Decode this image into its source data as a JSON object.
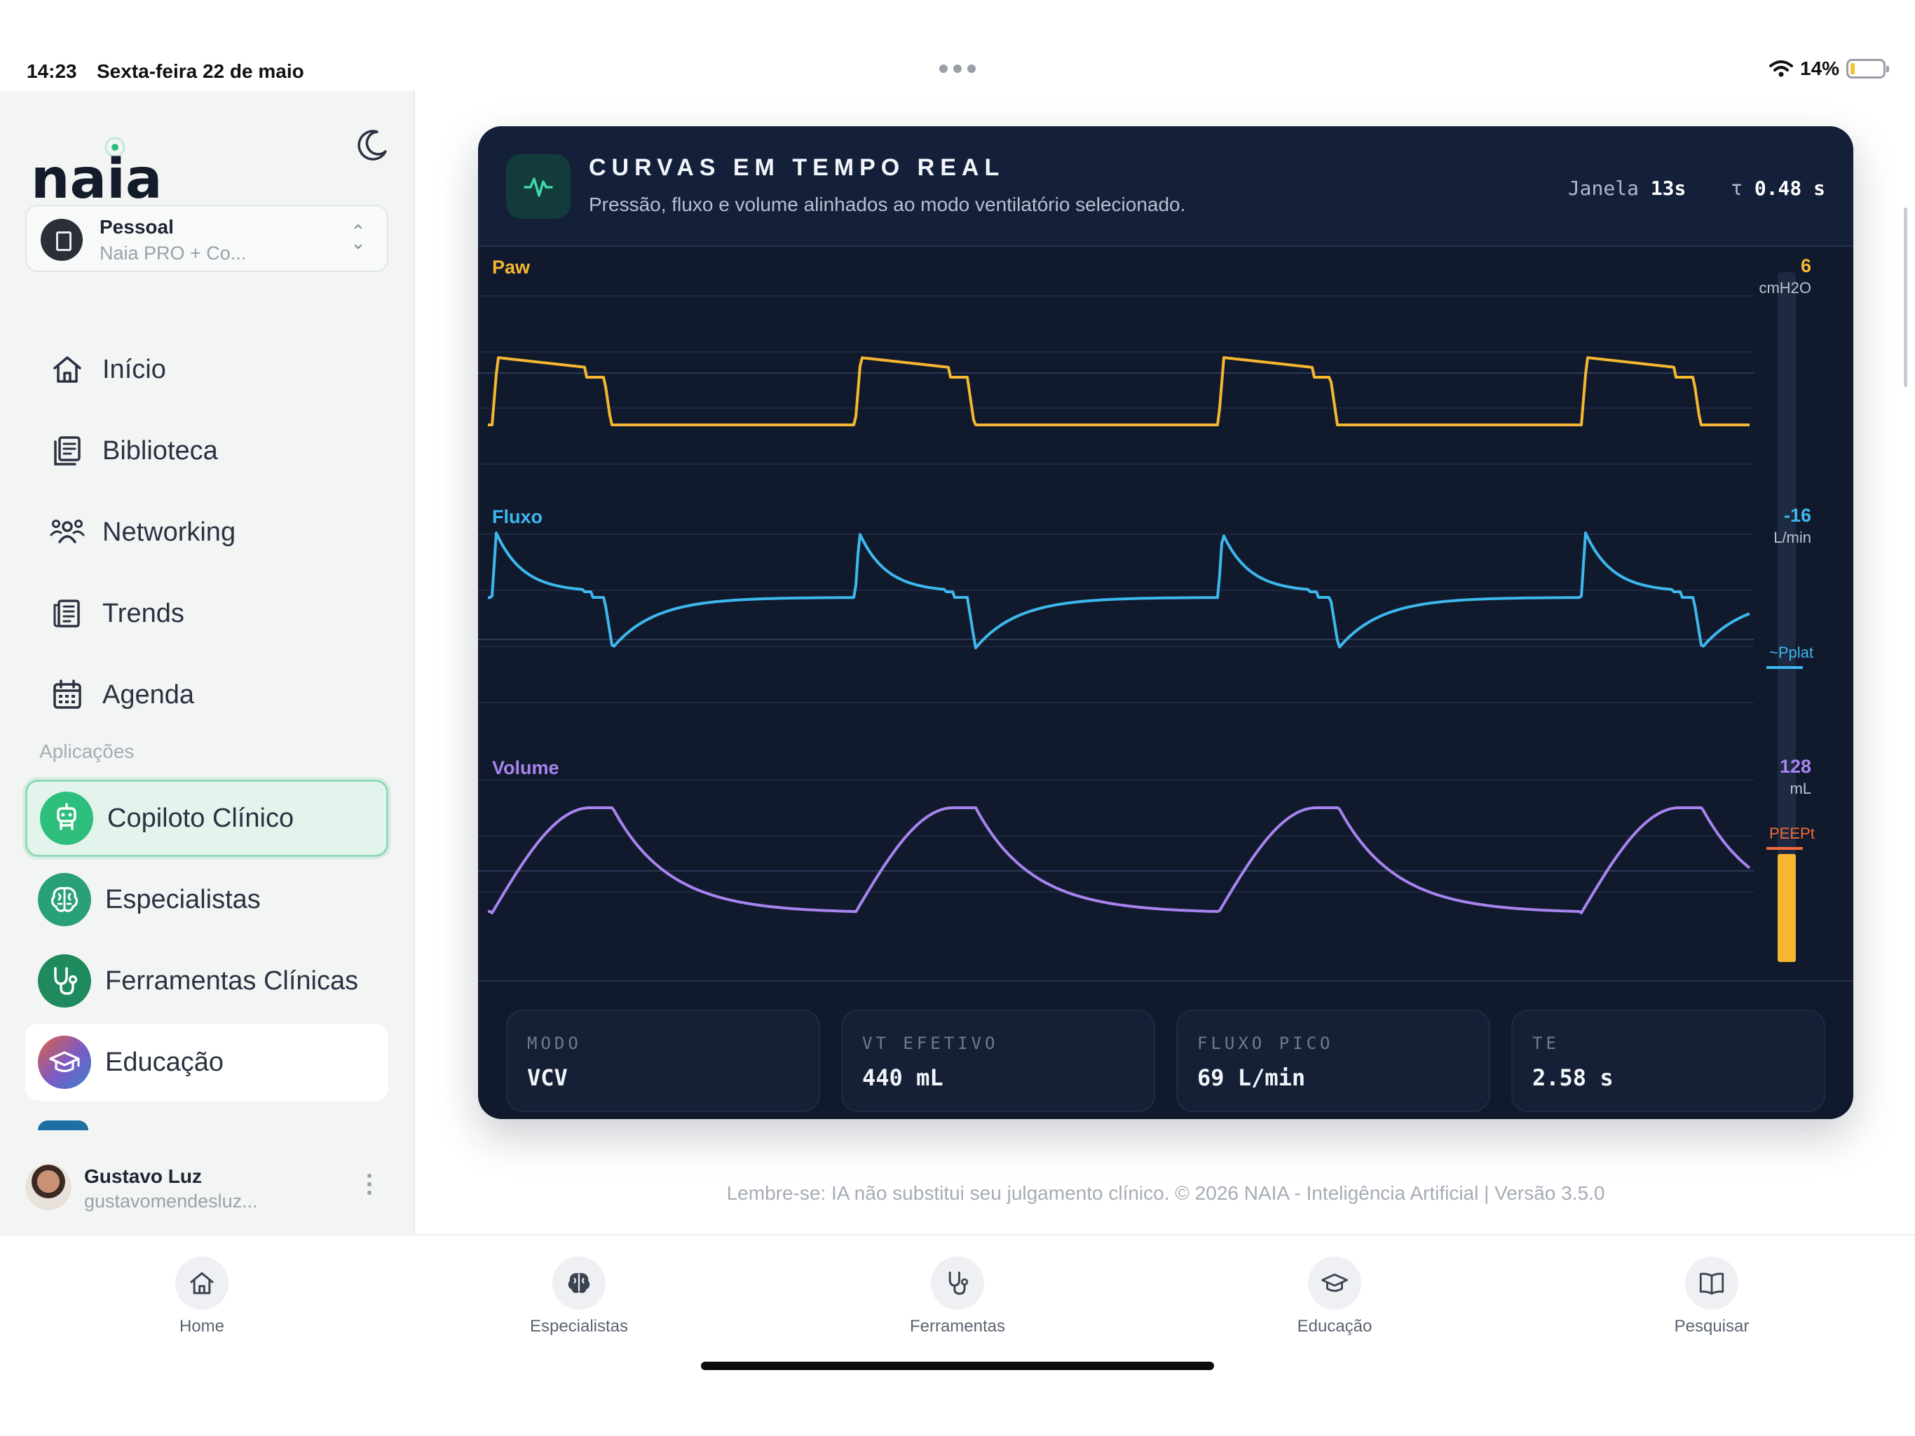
{
  "status_bar": {
    "time": "14:23",
    "date": "Sexta-feira 22 de maio",
    "battery": "14%",
    "battery_level": 0.14
  },
  "sidebar": {
    "logo_text": "naia",
    "workspace": {
      "name": "Pessoal",
      "subtitle": "Naia PRO + Co..."
    },
    "nav": [
      {
        "label": "Início",
        "icon": "home-icon"
      },
      {
        "label": "Biblioteca",
        "icon": "library-icon"
      },
      {
        "label": "Networking",
        "icon": "people-icon"
      },
      {
        "label": "Trends",
        "icon": "newspaper-icon"
      },
      {
        "label": "Agenda",
        "icon": "calendar-icon"
      }
    ],
    "apps_heading": "Aplicações",
    "apps": [
      {
        "label": "Copiloto Clínico",
        "icon": "robot-icon",
        "color": "#2fbf7d",
        "active": true
      },
      {
        "label": "Especialistas",
        "icon": "brain-icon",
        "color": "#2aa07a"
      },
      {
        "label": "Ferramentas Clínicas",
        "icon": "stethoscope-icon",
        "color": "#1e8a5e"
      },
      {
        "label": "Educação",
        "icon": "graduation-cap-icon",
        "color": "#7a5bc9"
      }
    ],
    "user": {
      "name": "Gustavo Luz",
      "email": "gustavomendesluz..."
    }
  },
  "panel": {
    "title": "CURVAS EM TEMPO REAL",
    "subtitle": "Pressão, fluxo e volume alinhados ao modo ventilatório selecionado.",
    "window_label": "Janela",
    "window_value": "13s",
    "tau_label": "τ",
    "tau_value": "0.48 s",
    "icon": "waveform-icon"
  },
  "channels": {
    "paw": {
      "label": "Paw",
      "value": "6",
      "unit": "cmH2O",
      "color": "#f5b731"
    },
    "flow": {
      "label": "Fluxo",
      "value": "-16",
      "unit": "L/min",
      "color": "#3cb8ee"
    },
    "volume": {
      "label": "Volume",
      "value": "128",
      "unit": "mL",
      "color": "#a784f0"
    }
  },
  "markers": {
    "pplat": {
      "label": "~Pplat",
      "color": "#3cb8ee"
    },
    "peep": {
      "label": "PEEPt",
      "color": "#f26b3a"
    },
    "gauge_color": "#f5b731"
  },
  "stats": [
    {
      "key": "MODO",
      "value": "VCV"
    },
    {
      "key": "VT EFETIVO",
      "value": "440 mL"
    },
    {
      "key": "FLUXO PICO",
      "value": "69 L/min"
    },
    {
      "key": "TE",
      "value": "2.58 s"
    }
  ],
  "disclaimer": "Lembre-se: IA não substitui seu julgamento clínico. © 2026 NAIA - Inteligência Artificial | Versão 3.5.0",
  "tabs": [
    {
      "label": "Home",
      "icon": "home-icon"
    },
    {
      "label": "Especialistas",
      "icon": "brain-icon"
    },
    {
      "label": "Ferramentas",
      "icon": "stethoscope-icon"
    },
    {
      "label": "Educação",
      "icon": "graduation-cap-icon"
    },
    {
      "label": "Pesquisar",
      "icon": "book-icon"
    }
  ]
}
